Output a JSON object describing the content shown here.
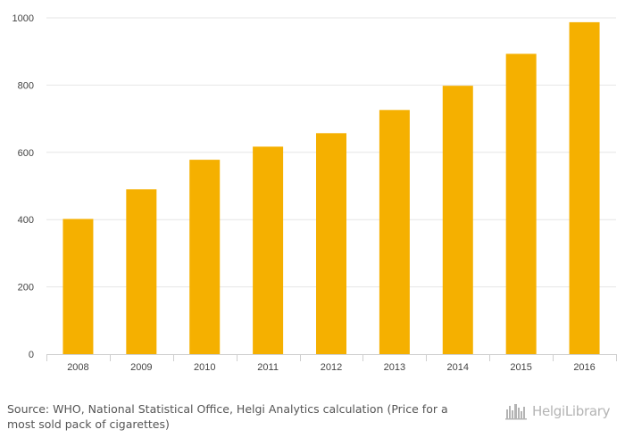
{
  "chart_data": {
    "type": "bar",
    "categories": [
      "2008",
      "2009",
      "2010",
      "2011",
      "2012",
      "2013",
      "2014",
      "2015",
      "2016"
    ],
    "values": [
      402,
      490,
      578,
      617,
      657,
      726,
      798,
      893,
      987
    ],
    "ylim": [
      0,
      1000
    ],
    "yticks": [
      0,
      200,
      400,
      600,
      800,
      1000
    ],
    "grid": true,
    "bar_color": "#f5b000",
    "title": "",
    "xlabel": "",
    "ylabel": ""
  },
  "footer": {
    "source_prefix": "Source:",
    "source_text": "WHO, National Statistical Office, Helgi Analytics calculation (Price for a most sold pack of cigarettes)"
  },
  "logo": {
    "text": "HelgiLibrary",
    "icon": "skyline-icon"
  }
}
